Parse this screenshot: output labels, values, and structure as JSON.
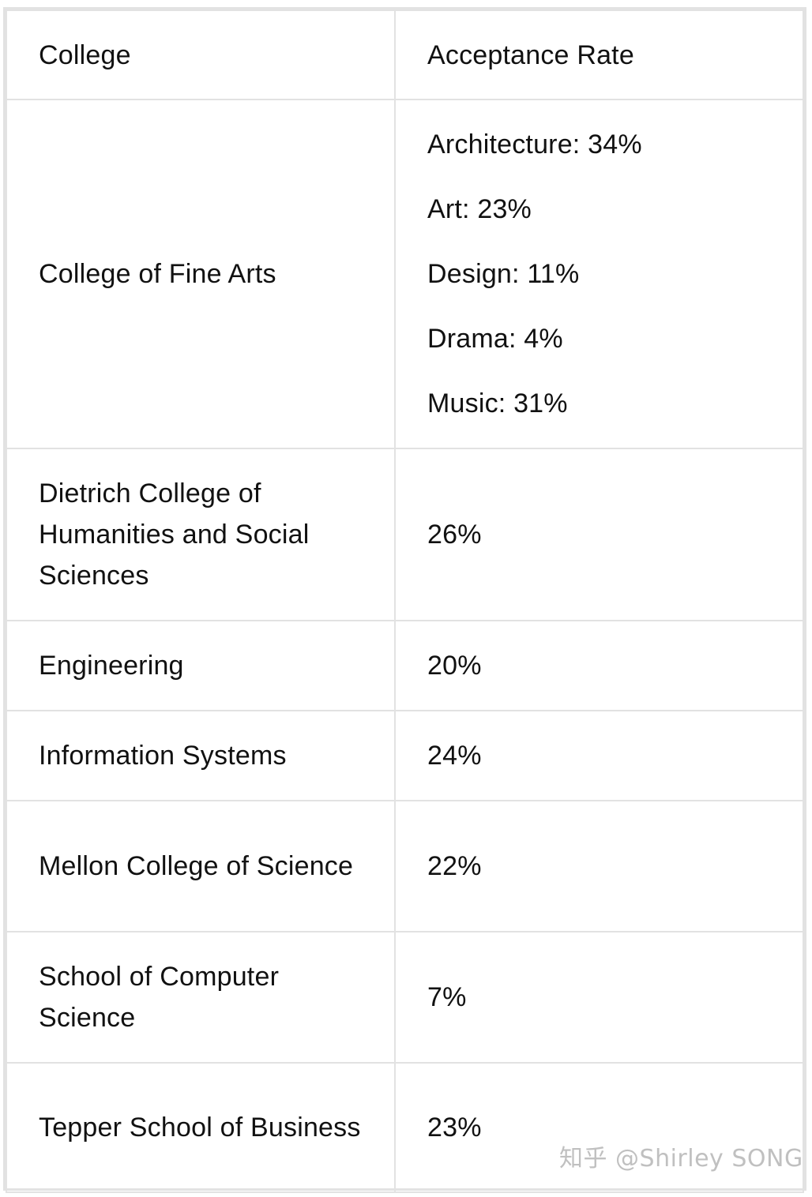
{
  "table": {
    "headers": [
      "College",
      "Acceptance Rate"
    ],
    "rows": [
      {
        "college": "College of Fine Arts",
        "rates": [
          "Architecture: 34%",
          "Art: 23%",
          "Design: 11%",
          "Drama: 4%",
          "Music: 31%"
        ]
      },
      {
        "college": "Dietrich College of Humanities and Social Sciences",
        "rate": "26%"
      },
      {
        "college": "Engineering",
        "rate": "20%"
      },
      {
        "college": "Information Systems",
        "rate": "24%"
      },
      {
        "college": "Mellon College of Science",
        "rate": "22%"
      },
      {
        "college": "School of Computer Science",
        "rate": "7%"
      },
      {
        "college": "Tepper School of Business",
        "rate": "23%"
      }
    ]
  },
  "watermark": "知乎 @Shirley SONG",
  "colors": {
    "border": "#e2e2e2",
    "text": "#111111",
    "background": "#ffffff"
  }
}
